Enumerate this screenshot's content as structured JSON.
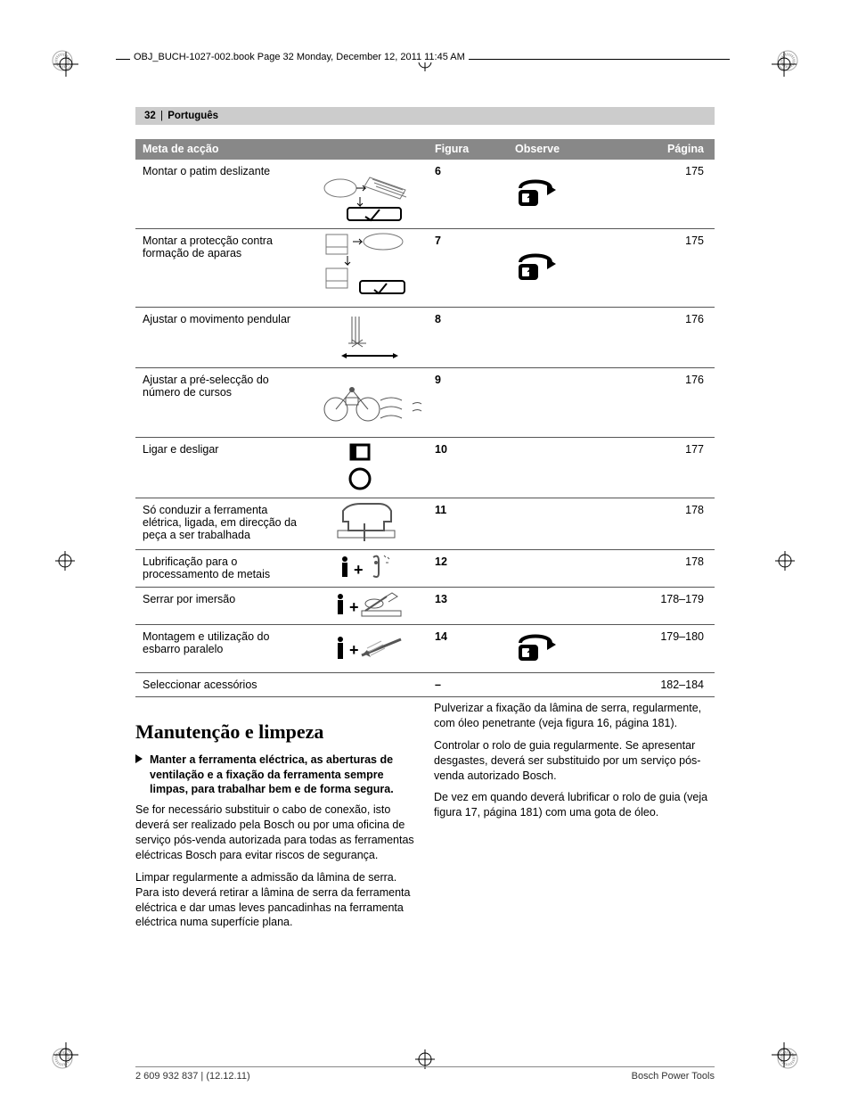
{
  "stamp": "OBJ_BUCH-1027-002.book  Page 32  Monday, December 12, 2011  11:45 AM",
  "lang_bar": {
    "page_no": "32",
    "lang": "Português"
  },
  "table": {
    "headers": {
      "action": "Meta de acção",
      "figure": "Figura",
      "observe": "Observe",
      "page": "Página"
    },
    "rows": [
      {
        "desc": "Montar o patim deslizante",
        "fig": "6",
        "page": "175",
        "has_obs_icon": true
      },
      {
        "desc": "Montar a protecção contra formação de aparas",
        "fig": "7",
        "page": "175",
        "has_obs_icon": true
      },
      {
        "desc": "Ajustar o movimento pendular",
        "fig": "8",
        "page": "176",
        "has_obs_icon": false
      },
      {
        "desc": "Ajustar a pré-selecção do número de cursos",
        "fig": "9",
        "page": "176",
        "has_obs_icon": false
      },
      {
        "desc": "Ligar e desligar",
        "fig": "10",
        "page": "177",
        "has_obs_icon": false
      },
      {
        "desc": "Só conduzir a ferramenta elétrica, ligada, em direcção da peça a ser trabalhada",
        "fig": "11",
        "page": "178",
        "has_obs_icon": false
      },
      {
        "desc": "Lubrificação para o processamento de metais",
        "fig": "12",
        "page": "178",
        "has_obs_icon": false
      },
      {
        "desc": "Serrar por imersão",
        "fig": "13",
        "page": "178–179",
        "has_obs_icon": false
      },
      {
        "desc": "Montagem e utilização do esbarro paralelo",
        "fig": "14",
        "page": "179–180",
        "has_obs_icon": true
      },
      {
        "desc": "Seleccionar acessórios",
        "fig": "–",
        "page": "182–184",
        "has_obs_icon": false
      }
    ]
  },
  "section_title": "Manutenção e limpeza",
  "bullet": "Manter a ferramenta eléctrica, as aberturas de ventilação e a fixação da ferramenta sempre limpas, para trabalhar bem e de forma segura.",
  "col1": {
    "p1": "Se for necessário substituir o cabo de conexão, isto deverá ser realizado pela Bosch ou por uma oficina de serviço pós-venda autorizada para todas as ferramentas eléctricas Bosch para evitar riscos de segurança.",
    "p2": "Limpar regularmente a admissão da lâmina de serra. Para isto deverá retirar a lâmina de serra da ferramenta eléctrica e dar umas leves pancadinhas na ferramenta eléctrica numa superfície plana."
  },
  "col2": {
    "p1": "Pulverizar a fixação da lâmina de serra, regularmente, com óleo penetrante (veja figura 16, página 181).",
    "p2": "Controlar o rolo de guia regularmente. Se apresentar desgastes, deverá ser substituido por um serviço pós-venda autorizado Bosch.",
    "p3": "De vez em quando deverá lubrificar o rolo de guia (veja figura 17, página 181) com uma gota de óleo."
  },
  "footer": {
    "left": "2 609 932 837 | (12.12.11)",
    "right": "Bosch Power Tools"
  }
}
